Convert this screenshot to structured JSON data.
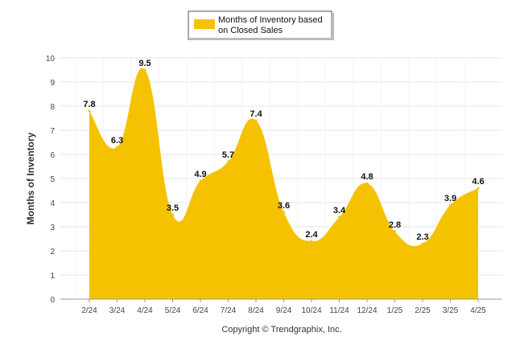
{
  "chart_data": {
    "type": "area",
    "categories": [
      "2/24",
      "3/24",
      "4/24",
      "5/24",
      "6/24",
      "7/24",
      "8/24",
      "9/24",
      "10/24",
      "11/24",
      "12/24",
      "1/25",
      "2/25",
      "3/25",
      "4/25"
    ],
    "series": [
      {
        "name_lines": [
          "Months of Inventory based",
          "on Closed Sales"
        ],
        "values": [
          7.8,
          6.3,
          9.5,
          3.5,
          4.9,
          5.7,
          7.4,
          3.6,
          2.4,
          3.4,
          4.8,
          2.8,
          2.3,
          3.9,
          4.6
        ],
        "color": "#f5c200"
      }
    ],
    "ylabel": "Months of Inventory",
    "xlabel": "",
    "ylim": [
      0,
      10
    ],
    "yticks": [
      0,
      1,
      2,
      3,
      4,
      5,
      6,
      7,
      8,
      9,
      10
    ],
    "data_labels": [
      "7.8",
      "6.3",
      "9.5",
      "3.5",
      "4.9",
      "5.7",
      "7.4",
      "3.6",
      "2.4",
      "3.4",
      "4.8",
      "2.8",
      "2.3",
      "3.9",
      "4.6"
    ],
    "legend_position": "top-center",
    "grid": true,
    "credit": "Copyright © Trendgraphix, Inc."
  }
}
